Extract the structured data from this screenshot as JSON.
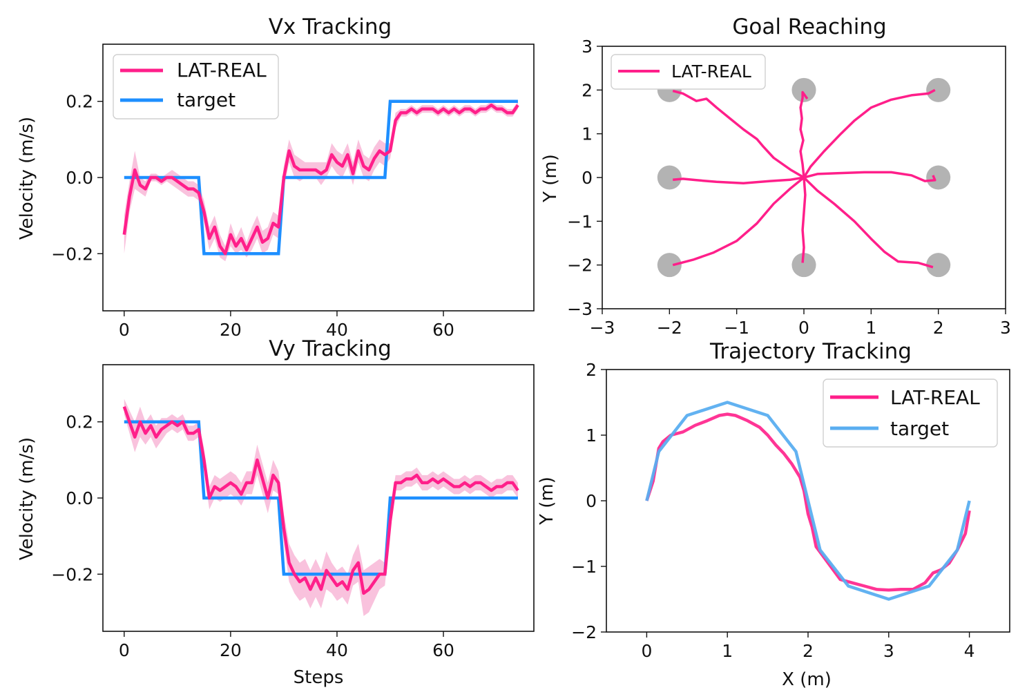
{
  "colors": {
    "lat_real": "#ff1f8a",
    "lat_real_band": "#f7a8cf",
    "target_step": "#1e8fff",
    "target_traj": "#5aaef0",
    "goal_disk": "#9a9a9a"
  },
  "chart_data": [
    {
      "id": "vx",
      "type": "line",
      "title": "Vx Tracking",
      "xlabel": "",
      "ylabel": "Velocity (m/s)",
      "xlim": [
        -4,
        77
      ],
      "ylim": [
        -0.35,
        0.35
      ],
      "xticks": [
        0,
        20,
        40,
        60
      ],
      "xtick_labels": [
        "0",
        "20",
        "40",
        "60"
      ],
      "yticks": [
        -0.2,
        0.0,
        0.2
      ],
      "ytick_labels": [
        "−0.2",
        "0.0",
        "0.2"
      ],
      "legend_position": "upper-left",
      "series": [
        {
          "name": "LAT-REAL",
          "x": [
            0,
            1,
            2,
            3,
            4,
            5,
            6,
            7,
            8,
            9,
            10,
            11,
            12,
            13,
            14,
            15,
            16,
            17,
            18,
            19,
            20,
            21,
            22,
            23,
            24,
            25,
            26,
            27,
            28,
            29,
            30,
            31,
            32,
            33,
            34,
            35,
            36,
            37,
            38,
            39,
            40,
            41,
            42,
            43,
            44,
            45,
            46,
            47,
            48,
            49,
            50,
            51,
            52,
            53,
            54,
            55,
            56,
            57,
            58,
            59,
            60,
            61,
            62,
            63,
            64,
            65,
            66,
            67,
            68,
            69,
            70,
            71,
            72,
            73,
            74
          ],
          "y": [
            -0.15,
            -0.05,
            0.02,
            -0.02,
            -0.03,
            0.0,
            0.0,
            -0.01,
            0.0,
            0.0,
            -0.01,
            -0.02,
            -0.03,
            -0.03,
            -0.04,
            -0.09,
            -0.16,
            -0.13,
            -0.18,
            -0.2,
            -0.15,
            -0.18,
            -0.16,
            -0.19,
            -0.16,
            -0.13,
            -0.17,
            -0.16,
            -0.12,
            -0.13,
            0.0,
            0.07,
            0.03,
            0.02,
            0.02,
            0.02,
            0.02,
            0.01,
            0.02,
            0.06,
            0.04,
            0.03,
            0.06,
            0.01,
            0.07,
            0.03,
            0.02,
            0.05,
            0.07,
            0.06,
            0.07,
            0.15,
            0.17,
            0.17,
            0.18,
            0.17,
            0.18,
            0.18,
            0.18,
            0.17,
            0.18,
            0.17,
            0.18,
            0.17,
            0.18,
            0.18,
            0.17,
            0.18,
            0.18,
            0.19,
            0.18,
            0.18,
            0.17,
            0.17,
            0.19
          ],
          "band": [
            0.05,
            0.04,
            0.05,
            0.02,
            0.02,
            0.01,
            0.01,
            0.01,
            0.01,
            0.02,
            0.02,
            0.02,
            0.02,
            0.02,
            0.02,
            0.03,
            0.03,
            0.03,
            0.03,
            0.02,
            0.03,
            0.02,
            0.03,
            0.02,
            0.03,
            0.03,
            0.03,
            0.03,
            0.03,
            0.03,
            0.03,
            0.03,
            0.03,
            0.03,
            0.02,
            0.02,
            0.02,
            0.03,
            0.02,
            0.03,
            0.03,
            0.03,
            0.03,
            0.03,
            0.03,
            0.03,
            0.03,
            0.03,
            0.03,
            0.03,
            0.02,
            0.02,
            0.01,
            0.01,
            0.01,
            0.01,
            0.01,
            0.01,
            0.01,
            0.01,
            0.01,
            0.01,
            0.01,
            0.01,
            0.01,
            0.01,
            0.01,
            0.01,
            0.01,
            0.01,
            0.01,
            0.01,
            0.01,
            0.01,
            0.01
          ]
        },
        {
          "name": "target",
          "x": [
            0,
            14,
            15,
            29,
            30,
            49,
            50,
            74
          ],
          "y": [
            0,
            0,
            -0.2,
            -0.2,
            0,
            0,
            0.2,
            0.2
          ]
        }
      ]
    },
    {
      "id": "goal",
      "type": "line",
      "title": "Goal Reaching",
      "xlabel": "",
      "ylabel": "Y (m)",
      "xlim": [
        -3,
        3
      ],
      "ylim": [
        -3,
        3
      ],
      "xticks": [
        -3,
        -2,
        -1,
        0,
        1,
        2,
        3
      ],
      "xtick_labels": [
        "−3",
        "−2",
        "−1",
        "0",
        "1",
        "2",
        "3"
      ],
      "yticks": [
        -3,
        -2,
        -1,
        0,
        1,
        2,
        3
      ],
      "ytick_labels": [
        "−3",
        "−2",
        "−1",
        "0",
        "1",
        "2",
        "3"
      ],
      "legend_position": "upper-left",
      "goals": [
        [
          -2,
          2
        ],
        [
          0,
          2
        ],
        [
          2,
          2
        ],
        [
          -2,
          0
        ],
        [
          2,
          0
        ],
        [
          -2,
          -2
        ],
        [
          0,
          -2
        ],
        [
          2,
          -2
        ]
      ],
      "series": [
        {
          "name": "LAT-REAL",
          "paths": [
            [
              [
                0,
                0
              ],
              [
                -0.2,
                0.18
              ],
              [
                -0.45,
                0.45
              ],
              [
                -0.6,
                0.7
              ],
              [
                -0.7,
                0.88
              ],
              [
                -0.9,
                1.1
              ],
              [
                -1.1,
                1.35
              ],
              [
                -1.3,
                1.6
              ],
              [
                -1.45,
                1.8
              ],
              [
                -1.6,
                1.75
              ],
              [
                -1.8,
                1.92
              ],
              [
                -1.95,
                1.98
              ]
            ],
            [
              [
                0,
                0
              ],
              [
                -0.02,
                0.3
              ],
              [
                -0.05,
                0.6
              ],
              [
                -0.01,
                0.85
              ],
              [
                -0.05,
                1.1
              ],
              [
                -0.03,
                1.35
              ],
              [
                -0.05,
                1.6
              ],
              [
                -0.02,
                1.82
              ],
              [
                -0.02,
                1.95
              ],
              [
                0.05,
                1.8
              ]
            ],
            [
              [
                0,
                0
              ],
              [
                0.1,
                0.25
              ],
              [
                0.3,
                0.6
              ],
              [
                0.55,
                1.0
              ],
              [
                0.75,
                1.3
              ],
              [
                1.0,
                1.6
              ],
              [
                1.3,
                1.78
              ],
              [
                1.6,
                1.88
              ],
              [
                1.85,
                1.92
              ],
              [
                1.95,
                2.0
              ]
            ],
            [
              [
                0,
                0
              ],
              [
                -0.2,
                -0.05
              ],
              [
                -0.5,
                -0.08
              ],
              [
                -0.9,
                -0.13
              ],
              [
                -1.3,
                -0.1
              ],
              [
                -1.6,
                -0.06
              ],
              [
                -1.8,
                -0.03
              ],
              [
                -1.95,
                -0.05
              ]
            ],
            [
              [
                0,
                0
              ],
              [
                0.2,
                0.08
              ],
              [
                0.5,
                0.1
              ],
              [
                0.9,
                0.12
              ],
              [
                1.3,
                0.12
              ],
              [
                1.6,
                0.05
              ],
              [
                1.8,
                -0.08
              ],
              [
                1.95,
                -0.06
              ],
              [
                1.92,
                0.05
              ]
            ],
            [
              [
                0,
                0
              ],
              [
                -0.2,
                -0.25
              ],
              [
                -0.45,
                -0.6
              ],
              [
                -0.7,
                -1.05
              ],
              [
                -1.0,
                -1.45
              ],
              [
                -1.35,
                -1.72
              ],
              [
                -1.65,
                -1.88
              ],
              [
                -1.95,
                -2.0
              ]
            ],
            [
              [
                0,
                0
              ],
              [
                0.02,
                -0.4
              ],
              [
                0.0,
                -0.8
              ],
              [
                -0.02,
                -1.2
              ],
              [
                0.0,
                -1.6
              ],
              [
                -0.02,
                -1.95
              ]
            ],
            [
              [
                0,
                0
              ],
              [
                0.2,
                -0.3
              ],
              [
                0.45,
                -0.6
              ],
              [
                0.75,
                -1.0
              ],
              [
                1.0,
                -1.4
              ],
              [
                1.2,
                -1.7
              ],
              [
                1.4,
                -1.92
              ],
              [
                1.7,
                -1.95
              ],
              [
                1.92,
                -2.05
              ]
            ]
          ]
        }
      ]
    },
    {
      "id": "vy",
      "type": "line",
      "title": "Vy Tracking",
      "xlabel": "Steps",
      "ylabel": "Velocity (m/s)",
      "xlim": [
        -4,
        77
      ],
      "ylim": [
        -0.35,
        0.35
      ],
      "xticks": [
        0,
        20,
        40,
        60
      ],
      "xtick_labels": [
        "0",
        "20",
        "40",
        "60"
      ],
      "yticks": [
        -0.2,
        0.0,
        0.2
      ],
      "ytick_labels": [
        "−0.2",
        "0.0",
        "0.2"
      ],
      "legend_position": "none",
      "series": [
        {
          "name": "LAT-REAL",
          "x": [
            0,
            1,
            2,
            3,
            4,
            5,
            6,
            7,
            8,
            9,
            10,
            11,
            12,
            13,
            14,
            15,
            16,
            17,
            18,
            19,
            20,
            21,
            22,
            23,
            24,
            25,
            26,
            27,
            28,
            29,
            30,
            31,
            32,
            33,
            34,
            35,
            36,
            37,
            38,
            39,
            40,
            41,
            42,
            43,
            44,
            45,
            46,
            47,
            48,
            49,
            50,
            51,
            52,
            53,
            54,
            55,
            56,
            57,
            58,
            59,
            60,
            61,
            62,
            63,
            64,
            65,
            66,
            67,
            68,
            69,
            70,
            71,
            72,
            73,
            74
          ],
          "y": [
            0.24,
            0.2,
            0.16,
            0.2,
            0.17,
            0.19,
            0.16,
            0.18,
            0.19,
            0.2,
            0.19,
            0.2,
            0.17,
            0.17,
            0.18,
            0.1,
            0.0,
            0.03,
            0.02,
            0.03,
            0.04,
            0.03,
            0.01,
            0.04,
            0.04,
            0.1,
            0.05,
            0.0,
            0.06,
            0.04,
            -0.08,
            -0.17,
            -0.2,
            -0.22,
            -0.21,
            -0.24,
            -0.21,
            -0.24,
            -0.19,
            -0.21,
            -0.23,
            -0.22,
            -0.24,
            -0.19,
            -0.17,
            -0.25,
            -0.24,
            -0.22,
            -0.2,
            -0.2,
            -0.06,
            0.04,
            0.04,
            0.05,
            0.05,
            0.06,
            0.04,
            0.04,
            0.05,
            0.04,
            0.05,
            0.04,
            0.03,
            0.03,
            0.04,
            0.03,
            0.04,
            0.04,
            0.03,
            0.02,
            0.03,
            0.03,
            0.04,
            0.04,
            0.02
          ],
          "band": [
            0.02,
            0.03,
            0.04,
            0.04,
            0.03,
            0.03,
            0.03,
            0.03,
            0.02,
            0.02,
            0.02,
            0.02,
            0.02,
            0.02,
            0.02,
            0.03,
            0.03,
            0.03,
            0.03,
            0.03,
            0.03,
            0.03,
            0.03,
            0.03,
            0.03,
            0.04,
            0.04,
            0.04,
            0.04,
            0.03,
            0.04,
            0.05,
            0.05,
            0.05,
            0.05,
            0.05,
            0.05,
            0.05,
            0.05,
            0.04,
            0.04,
            0.04,
            0.04,
            0.04,
            0.05,
            0.06,
            0.06,
            0.05,
            0.04,
            0.03,
            0.03,
            0.02,
            0.02,
            0.02,
            0.02,
            0.02,
            0.02,
            0.02,
            0.02,
            0.02,
            0.02,
            0.02,
            0.02,
            0.02,
            0.02,
            0.02,
            0.02,
            0.02,
            0.02,
            0.02,
            0.02,
            0.02,
            0.02,
            0.02,
            0.02
          ]
        },
        {
          "name": "target",
          "x": [
            0,
            14,
            15,
            29,
            30,
            49,
            50,
            74
          ],
          "y": [
            0.2,
            0.2,
            0,
            0,
            -0.2,
            -0.2,
            0,
            0
          ]
        }
      ]
    },
    {
      "id": "traj",
      "type": "line",
      "title": "Trajectory Tracking",
      "xlabel": "X (m)",
      "ylabel": "Y (m)",
      "xlim": [
        -0.5,
        4.5
      ],
      "ylim": [
        -2,
        2
      ],
      "xticks": [
        0,
        1,
        2,
        3,
        4
      ],
      "xtick_labels": [
        "0",
        "1",
        "2",
        "3",
        "4"
      ],
      "yticks": [
        -2,
        -1,
        0,
        1,
        2
      ],
      "ytick_labels": [
        "−2",
        "−1",
        "0",
        "1",
        "2"
      ],
      "legend_position": "upper-right",
      "series": [
        {
          "name": "LAT-REAL",
          "x": [
            0,
            0.08,
            0.15,
            0.2,
            0.3,
            0.45,
            0.6,
            0.75,
            0.9,
            1.0,
            1.1,
            1.25,
            1.4,
            1.5,
            1.6,
            1.7,
            1.8,
            1.9,
            1.95,
            2.0,
            2.05,
            2.1,
            2.25,
            2.4,
            2.55,
            2.7,
            2.85,
            3.0,
            3.15,
            3.3,
            3.45,
            3.55,
            3.65,
            3.75,
            3.85,
            3.95,
            4.0
          ],
          "x_note": "",
          "y": [
            0,
            0.3,
            0.8,
            0.9,
            1.0,
            1.05,
            1.15,
            1.22,
            1.3,
            1.32,
            1.3,
            1.22,
            1.12,
            1.0,
            0.85,
            0.72,
            0.56,
            0.36,
            0.15,
            -0.2,
            -0.4,
            -0.7,
            -0.95,
            -1.2,
            -1.25,
            -1.3,
            -1.35,
            -1.36,
            -1.35,
            -1.35,
            -1.25,
            -1.1,
            -1.05,
            -0.95,
            -0.75,
            -0.5,
            -0.15
          ]
        },
        {
          "name": "target",
          "x": [
            0,
            0.15,
            0.5,
            1.0,
            1.5,
            1.85,
            2.0,
            2.15,
            2.5,
            3.0,
            3.5,
            3.85,
            4.0
          ],
          "y": [
            0,
            0.75,
            1.3,
            1.5,
            1.3,
            0.75,
            0,
            -0.75,
            -1.3,
            -1.5,
            -1.3,
            -0.75,
            0
          ]
        }
      ]
    }
  ]
}
